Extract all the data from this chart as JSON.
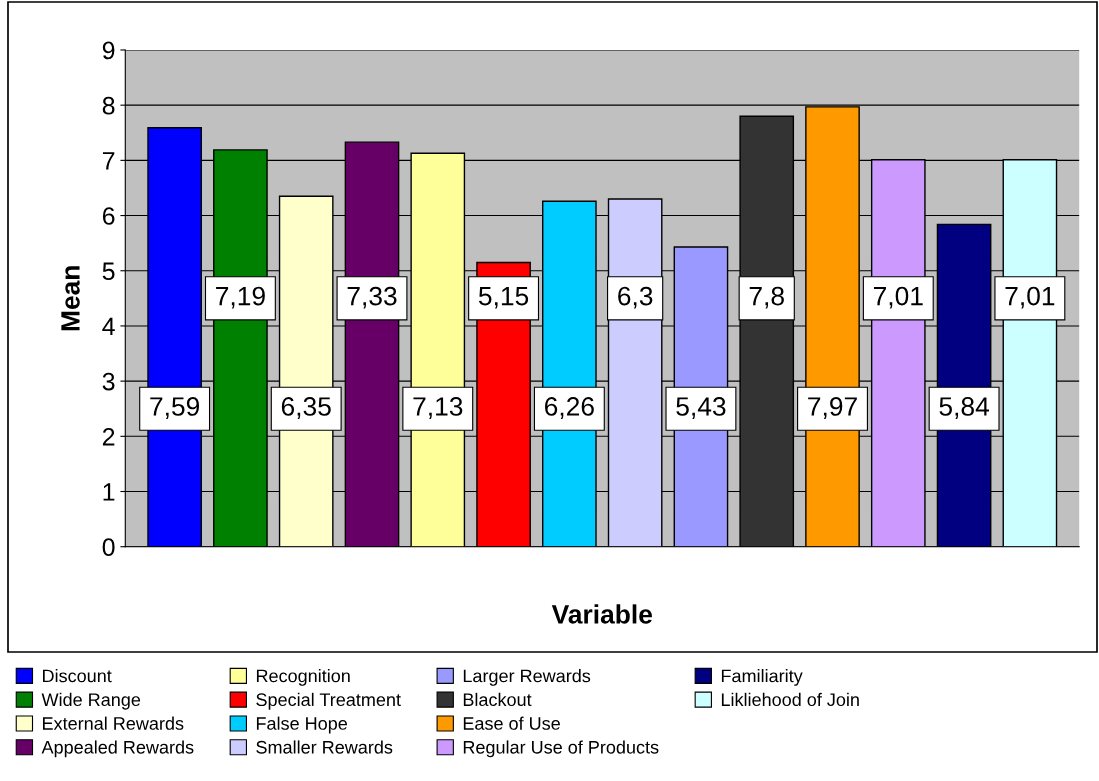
{
  "chart_data": {
    "type": "bar",
    "xlabel": "Variable",
    "ylabel": "Mean",
    "categories": [
      null,
      null,
      null,
      null,
      null,
      null,
      null,
      null,
      null,
      null,
      null,
      null,
      null,
      null
    ],
    "ylim": [
      0,
      9
    ],
    "yticks": [
      0,
      1,
      2,
      3,
      4,
      5,
      6,
      7,
      8,
      9
    ],
    "grid": "y",
    "legend": "bottom",
    "series": [
      {
        "name": "Discount",
        "color": "#0000ff",
        "values": [
          7.59,
          null,
          null,
          null,
          null,
          null,
          null,
          null,
          null,
          null,
          null,
          null,
          null,
          null
        ],
        "value_labels": [
          "7,59",
          null,
          null,
          null,
          null,
          null,
          null,
          null,
          null,
          null,
          null,
          null,
          null,
          null
        ]
      },
      {
        "name": "Wide Range",
        "color": "#008000",
        "values": [
          null,
          7.19,
          null,
          null,
          null,
          null,
          null,
          null,
          null,
          null,
          null,
          null,
          null,
          null
        ],
        "value_labels": [
          null,
          "7,19",
          null,
          null,
          null,
          null,
          null,
          null,
          null,
          null,
          null,
          null,
          null,
          null
        ]
      },
      {
        "name": "External Rewards",
        "color": "#ffffcc",
        "values": [
          null,
          null,
          6.35,
          null,
          null,
          null,
          null,
          null,
          null,
          null,
          null,
          null,
          null,
          null
        ],
        "value_labels": [
          null,
          null,
          "6,35",
          null,
          null,
          null,
          null,
          null,
          null,
          null,
          null,
          null,
          null,
          null
        ]
      },
      {
        "name": "Appealed Rewards",
        "color": "#660066",
        "values": [
          null,
          null,
          null,
          7.33,
          null,
          null,
          null,
          null,
          null,
          null,
          null,
          null,
          null,
          null
        ],
        "value_labels": [
          null,
          null,
          null,
          "7,33",
          null,
          null,
          null,
          null,
          null,
          null,
          null,
          null,
          null,
          null
        ]
      },
      {
        "name": "Recognition",
        "color": "#ffff99",
        "values": [
          null,
          null,
          null,
          null,
          7.13,
          null,
          null,
          null,
          null,
          null,
          null,
          null,
          null,
          null
        ],
        "value_labels": [
          null,
          null,
          null,
          null,
          "7,13",
          null,
          null,
          null,
          null,
          null,
          null,
          null,
          null,
          null
        ]
      },
      {
        "name": "Special Treatment",
        "color": "#ff0000",
        "values": [
          null,
          null,
          null,
          null,
          null,
          5.15,
          null,
          null,
          null,
          null,
          null,
          null,
          null,
          null
        ],
        "value_labels": [
          null,
          null,
          null,
          null,
          null,
          "5,15",
          null,
          null,
          null,
          null,
          null,
          null,
          null,
          null
        ]
      },
      {
        "name": "False Hope",
        "color": "#00ccff",
        "values": [
          null,
          null,
          null,
          null,
          null,
          null,
          6.26,
          null,
          null,
          null,
          null,
          null,
          null,
          null
        ],
        "value_labels": [
          null,
          null,
          null,
          null,
          null,
          null,
          "6,26",
          null,
          null,
          null,
          null,
          null,
          null,
          null
        ]
      },
      {
        "name": "Smaller Rewards",
        "color": "#ccccff",
        "values": [
          null,
          null,
          null,
          null,
          null,
          null,
          null,
          6.3,
          null,
          null,
          null,
          null,
          null,
          null
        ],
        "value_labels": [
          null,
          null,
          null,
          null,
          null,
          null,
          null,
          "6,3",
          null,
          null,
          null,
          null,
          null,
          null
        ]
      },
      {
        "name": "Larger Rewards",
        "color": "#9999ff",
        "values": [
          null,
          null,
          null,
          null,
          null,
          null,
          null,
          null,
          5.43,
          null,
          null,
          null,
          null,
          null
        ],
        "value_labels": [
          null,
          null,
          null,
          null,
          null,
          null,
          null,
          null,
          "5,43",
          null,
          null,
          null,
          null,
          null
        ]
      },
      {
        "name": "Blackout",
        "color": "#333333",
        "values": [
          null,
          null,
          null,
          null,
          null,
          null,
          null,
          null,
          null,
          7.8,
          null,
          null,
          null,
          null
        ],
        "value_labels": [
          null,
          null,
          null,
          null,
          null,
          null,
          null,
          null,
          null,
          "7,8",
          null,
          null,
          null,
          null
        ]
      },
      {
        "name": "Ease of Use",
        "color": "#ff9900",
        "values": [
          null,
          null,
          null,
          null,
          null,
          null,
          null,
          null,
          null,
          null,
          7.97,
          null,
          null,
          null
        ],
        "value_labels": [
          null,
          null,
          null,
          null,
          null,
          null,
          null,
          null,
          null,
          null,
          "7,97",
          null,
          null,
          null
        ]
      },
      {
        "name": "Regular Use of Products",
        "color": "#cc99ff",
        "values": [
          null,
          null,
          null,
          null,
          null,
          null,
          null,
          null,
          null,
          null,
          null,
          7.01,
          null,
          null
        ],
        "value_labels": [
          null,
          null,
          null,
          null,
          null,
          null,
          null,
          null,
          null,
          null,
          null,
          "7,01",
          null,
          null
        ]
      },
      {
        "name": "Familiarity",
        "color": "#000080",
        "values": [
          null,
          null,
          null,
          null,
          null,
          null,
          null,
          null,
          null,
          null,
          null,
          null,
          5.84,
          null
        ],
        "value_labels": [
          null,
          null,
          null,
          null,
          null,
          null,
          null,
          null,
          null,
          null,
          null,
          null,
          "5,84",
          null
        ]
      },
      {
        "name": "Likliehood of Join",
        "color": "#ccffff",
        "values": [
          null,
          null,
          null,
          null,
          null,
          null,
          null,
          null,
          null,
          null,
          null,
          null,
          null,
          7.01
        ],
        "value_labels": [
          null,
          null,
          null,
          null,
          null,
          null,
          null,
          null,
          null,
          null,
          null,
          null,
          null,
          "7,01"
        ]
      }
    ]
  }
}
